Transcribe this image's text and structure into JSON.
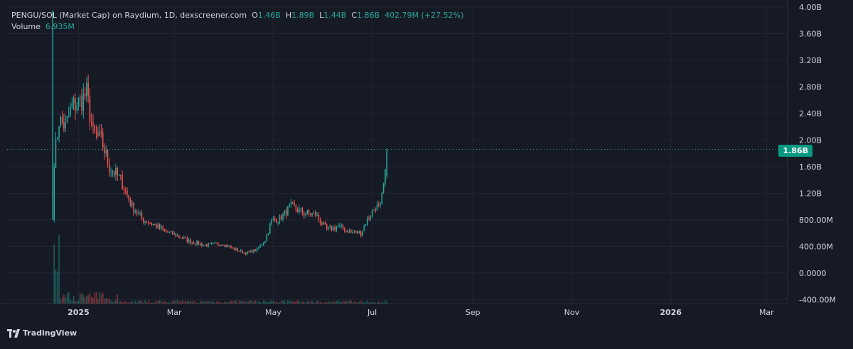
{
  "legend": {
    "symbol": "PENGU/SOL (Market Cap) on Raydium, 1D, dexscreener.com",
    "o_label": "O",
    "o_value": "1.46B",
    "h_label": "H",
    "h_value": "1.89B",
    "l_label": "L",
    "l_value": "1.44B",
    "c_label": "C",
    "c_value": "1.86B",
    "change": "402.79M (+27.52%)",
    "volume_label": "Volume",
    "volume_value": "6.935M"
  },
  "last_price_label": "1.86B",
  "brand": {
    "name": "TradingView",
    "icon": "tradingview-logo-icon"
  },
  "colors": {
    "up": "#26a69a",
    "down": "#ef5350",
    "background": "#161a25",
    "grid": "#232734",
    "text": "#d1d4dc"
  },
  "chart_data": {
    "type": "candlestick",
    "title": "PENGU/SOL (Market Cap) on Raydium, 1D, dexscreener.com",
    "y_unit": "market cap (USD)",
    "yticks": [
      {
        "value": 4000000000,
        "label": "4.00B"
      },
      {
        "value": 3600000000,
        "label": "3.60B"
      },
      {
        "value": 3200000000,
        "label": "3.20B"
      },
      {
        "value": 2800000000,
        "label": "2.80B"
      },
      {
        "value": 2400000000,
        "label": "2.40B"
      },
      {
        "value": 2000000000,
        "label": "2.00B"
      },
      {
        "value": 1600000000,
        "label": "1.60B"
      },
      {
        "value": 1200000000,
        "label": "1.20B"
      },
      {
        "value": 800000000,
        "label": "800.00M"
      },
      {
        "value": 400000000,
        "label": "400.00M"
      },
      {
        "value": 0,
        "label": "0.0000"
      },
      {
        "value": -400000000,
        "label": "-400.00M"
      }
    ],
    "ylim": [
      -460000000,
      4020000000
    ],
    "xlim": [
      "2024-11-18",
      "2026-03-14"
    ],
    "xticks": [
      {
        "date": "2025-01-01",
        "label": "2025",
        "bold": true
      },
      {
        "date": "2025-03-01",
        "label": "Mar",
        "bold": false
      },
      {
        "date": "2025-05-01",
        "label": "May",
        "bold": false
      },
      {
        "date": "2025-07-01",
        "label": "Jul",
        "bold": false
      },
      {
        "date": "2025-09-01",
        "label": "Sep",
        "bold": false
      },
      {
        "date": "2025-11-01",
        "label": "Nov",
        "bold": false
      },
      {
        "date": "2026-01-01",
        "label": "2026",
        "bold": true
      },
      {
        "date": "2026-03-01",
        "label": "Mar",
        "bold": false
      }
    ],
    "last_price": 1860000000,
    "price_anchors": [
      [
        "2024-12-17",
        1700000000
      ],
      [
        "2024-12-20",
        2300000000
      ],
      [
        "2024-12-24",
        2200000000
      ],
      [
        "2024-12-28",
        2500000000
      ],
      [
        "2025-01-03",
        2600000000
      ],
      [
        "2025-01-06",
        2700000000
      ],
      [
        "2025-01-10",
        2100000000
      ],
      [
        "2025-01-15",
        2000000000
      ],
      [
        "2025-01-20",
        1600000000
      ],
      [
        "2025-01-27",
        1400000000
      ],
      [
        "2025-02-03",
        1000000000
      ],
      [
        "2025-02-10",
        800000000
      ],
      [
        "2025-02-17",
        720000000
      ],
      [
        "2025-02-24",
        620000000
      ],
      [
        "2025-03-03",
        560000000
      ],
      [
        "2025-03-10",
        480000000
      ],
      [
        "2025-03-20",
        420000000
      ],
      [
        "2025-03-31",
        440000000
      ],
      [
        "2025-04-07",
        360000000
      ],
      [
        "2025-04-14",
        300000000
      ],
      [
        "2025-04-21",
        350000000
      ],
      [
        "2025-04-26",
        500000000
      ],
      [
        "2025-04-30",
        780000000
      ],
      [
        "2025-05-05",
        820000000
      ],
      [
        "2025-05-12",
        1000000000
      ],
      [
        "2025-05-20",
        900000000
      ],
      [
        "2025-05-27",
        880000000
      ],
      [
        "2025-06-03",
        650000000
      ],
      [
        "2025-06-10",
        700000000
      ],
      [
        "2025-06-17",
        620000000
      ],
      [
        "2025-06-24",
        600000000
      ],
      [
        "2025-06-28",
        800000000
      ],
      [
        "2025-07-03",
        1000000000
      ],
      [
        "2025-07-06",
        980000000
      ],
      [
        "2025-07-09",
        1460000000
      ],
      [
        "2025-07-10",
        1860000000
      ]
    ],
    "volume_label": "Volume",
    "volume_last": "6.935M"
  }
}
